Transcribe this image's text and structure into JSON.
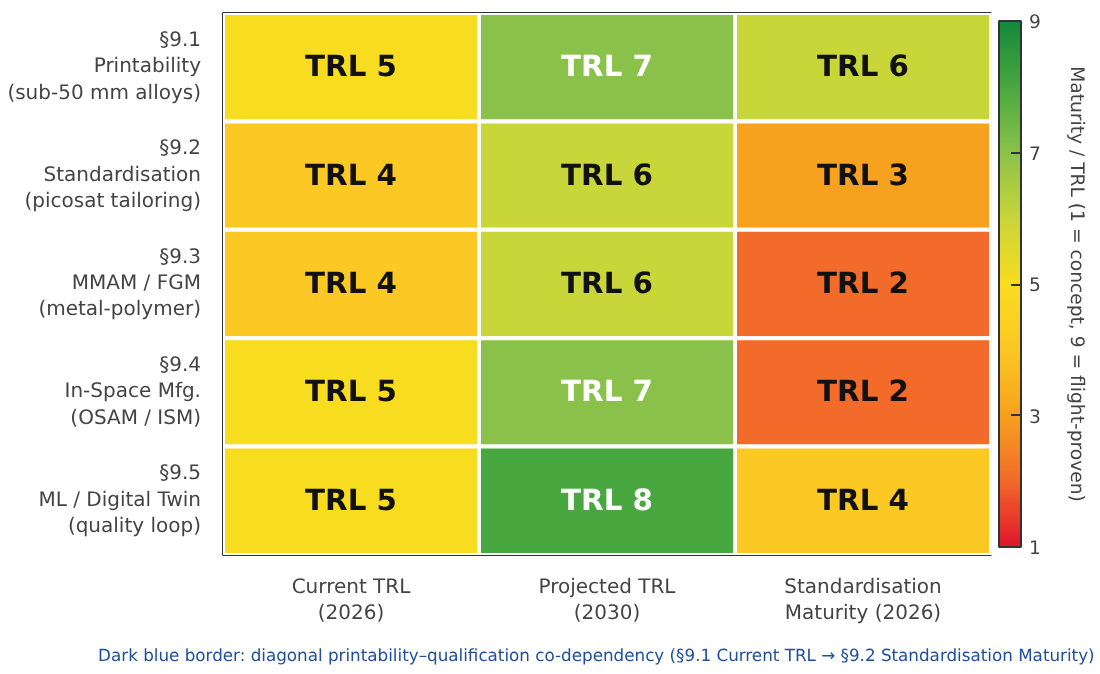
{
  "chart_data": {
    "type": "heatmap",
    "categories": [
      "Current TRL\n(2026)",
      "Projected TRL\n(2030)",
      "Standardisation\nMaturity (2026)"
    ],
    "y_categories": [
      "§9.1\nPrintability\n(sub-50 mm alloys)",
      "§9.2\nStandardisation\n(picosat tailoring)",
      "§9.3\nMMAM / FGM\n(metal-polymer)",
      "§9.4\nIn-Space Mfg.\n(OSAM / ISM)",
      "§9.5\nML / Digital Twin\n(quality loop)"
    ],
    "cells": [
      [
        5,
        7,
        6
      ],
      [
        4,
        6,
        3
      ],
      [
        4,
        6,
        2
      ],
      [
        5,
        7,
        2
      ],
      [
        5,
        8,
        4
      ]
    ],
    "cell_labels": [
      [
        "TRL 5",
        "TRL 7",
        "TRL 6"
      ],
      [
        "TRL 4",
        "TRL 6",
        "TRL 3"
      ],
      [
        "TRL 4",
        "TRL 6",
        "TRL 2"
      ],
      [
        "TRL 5",
        "TRL 7",
        "TRL 2"
      ],
      [
        "TRL 5",
        "TRL 8",
        "TRL 4"
      ]
    ],
    "clim": [
      1,
      9
    ],
    "cticks": [
      1,
      3,
      5,
      7,
      9
    ],
    "clabel": "Maturity / TRL (1 = concept, 9 = flight-proven)",
    "annotations": [
      "Dark blue border:  diagonal printability–qualification co-dependency  (§9.1 Current TRL  →  §9.2 Standardisation Maturity)"
    ]
  }
}
